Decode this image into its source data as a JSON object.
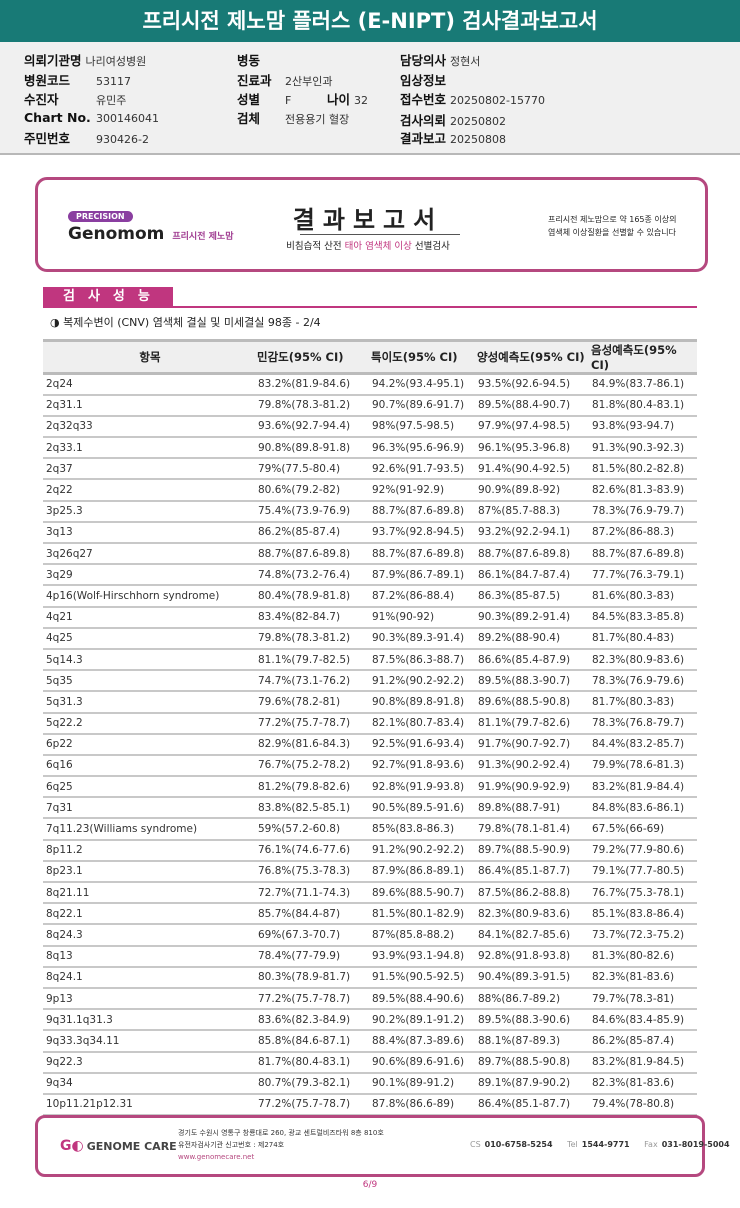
{
  "title": "프리시전 제노맘 플러스 (E-NIPT) 검사결과보고서",
  "patient": {
    "institution": {
      "label": "의뢰기관명",
      "value": "나리여성병원"
    },
    "hospital_code": {
      "label": "병원코드",
      "value": "53117"
    },
    "examinee": {
      "label": "수진자",
      "value": "유민주"
    },
    "chart_no": {
      "label": "Chart No.",
      "value": "300146041"
    },
    "resident_no": {
      "label": "주민번호",
      "value": "930426-2"
    },
    "ward": {
      "label": "병동",
      "value": ""
    },
    "department": {
      "label": "진료과",
      "value": "2산부인과"
    },
    "sex": {
      "label": "성별",
      "value": "F"
    },
    "age": {
      "label": "나이",
      "value": "32"
    },
    "specimen": {
      "label": "검체",
      "value": "전용용기 혈장"
    },
    "doctor": {
      "label": "담당의사",
      "value": "정현서"
    },
    "clinical_info": {
      "label": "임상정보",
      "value": ""
    },
    "receipt_no": {
      "label": "접수번호",
      "value": "20250802-15770"
    },
    "request_date": {
      "label": "검사의뢰",
      "value": "20250802"
    },
    "report_date": {
      "label": "결과보고",
      "value": "20250808"
    }
  },
  "report_header": {
    "badge": "PRECISION",
    "brand": "Genomom",
    "brand_kr": "프리시전 제노맘",
    "title": "결과보고서",
    "subtitle_pre": "비침습적 산전 ",
    "subtitle_hl": "태아 염색체 이상",
    "subtitle_post": " 선별검사",
    "note_line1": "프리시전 제노맘으로 약 165종 이상의",
    "note_line2": "염색체 이상질환을 선별할 수 있습니다"
  },
  "section": {
    "tab": "검사성능",
    "subtitle": "◑ 복제수변이 (CNV) 염색체 결실 및 미세결실 98종 - 2/4"
  },
  "table": {
    "headers": [
      "항목",
      "민감도(95% CI)",
      "특이도(95% CI)",
      "양성예측도(95% CI)",
      "음성예측도(95% CI)"
    ],
    "rows": [
      [
        "2q24",
        "83.2%(81.9-84.6)",
        "94.2%(93.4-95.1)",
        "93.5%(92.6-94.5)",
        "84.9%(83.7-86.1)"
      ],
      [
        "2q31.1",
        "79.8%(78.3-81.2)",
        "90.7%(89.6-91.7)",
        "89.5%(88.4-90.7)",
        "81.8%(80.4-83.1)"
      ],
      [
        "2q32q33",
        "93.6%(92.7-94.4)",
        "98%(97.5-98.5)",
        "97.9%(97.4-98.5)",
        "93.8%(93-94.7)"
      ],
      [
        "2q33.1",
        "90.8%(89.8-91.8)",
        "96.3%(95.6-96.9)",
        "96.1%(95.3-96.8)",
        "91.3%(90.3-92.3)"
      ],
      [
        "2q37",
        "79%(77.5-80.4)",
        "92.6%(91.7-93.5)",
        "91.4%(90.4-92.5)",
        "81.5%(80.2-82.8)"
      ],
      [
        "2q22",
        "80.6%(79.2-82)",
        "92%(91-92.9)",
        "90.9%(89.8-92)",
        "82.6%(81.3-83.9)"
      ],
      [
        "3p25.3",
        "75.4%(73.9-76.9)",
        "88.7%(87.6-89.8)",
        "87%(85.7-88.3)",
        "78.3%(76.9-79.7)"
      ],
      [
        "3q13",
        "86.2%(85-87.4)",
        "93.7%(92.8-94.5)",
        "93.2%(92.2-94.1)",
        "87.2%(86-88.3)"
      ],
      [
        "3q26q27",
        "88.7%(87.6-89.8)",
        "88.7%(87.6-89.8)",
        "88.7%(87.6-89.8)",
        "88.7%(87.6-89.8)"
      ],
      [
        "3q29",
        "74.8%(73.2-76.4)",
        "87.9%(86.7-89.1)",
        "86.1%(84.7-87.4)",
        "77.7%(76.3-79.1)"
      ],
      [
        "4p16(Wolf-Hirschhorn syndrome)",
        "80.4%(78.9-81.8)",
        "87.2%(86-88.4)",
        "86.3%(85-87.5)",
        "81.6%(80.3-83)"
      ],
      [
        "4q21",
        "83.4%(82-84.7)",
        "91%(90-92)",
        "90.3%(89.2-91.4)",
        "84.5%(83.3-85.8)"
      ],
      [
        "4q25",
        "79.8%(78.3-81.2)",
        "90.3%(89.3-91.4)",
        "89.2%(88-90.4)",
        "81.7%(80.4-83)"
      ],
      [
        "5q14.3",
        "81.1%(79.7-82.5)",
        "87.5%(86.3-88.7)",
        "86.6%(85.4-87.9)",
        "82.3%(80.9-83.6)"
      ],
      [
        "5q35",
        "74.7%(73.1-76.2)",
        "91.2%(90.2-92.2)",
        "89.5%(88.3-90.7)",
        "78.3%(76.9-79.6)"
      ],
      [
        "5q31.3",
        "79.6%(78.2-81)",
        "90.8%(89.8-91.8)",
        "89.6%(88.5-90.8)",
        "81.7%(80.3-83)"
      ],
      [
        "5q22.2",
        "77.2%(75.7-78.7)",
        "82.1%(80.7-83.4)",
        "81.1%(79.7-82.6)",
        "78.3%(76.8-79.7)"
      ],
      [
        "6p22",
        "82.9%(81.6-84.3)",
        "92.5%(91.6-93.4)",
        "91.7%(90.7-92.7)",
        "84.4%(83.2-85.7)"
      ],
      [
        "6q16",
        "76.7%(75.2-78.2)",
        "92.7%(91.8-93.6)",
        "91.3%(90.2-92.4)",
        "79.9%(78.6-81.3)"
      ],
      [
        "6q25",
        "81.2%(79.8-82.6)",
        "92.8%(91.9-93.8)",
        "91.9%(90.9-92.9)",
        "83.2%(81.9-84.4)"
      ],
      [
        "7q31",
        "83.8%(82.5-85.1)",
        "90.5%(89.5-91.6)",
        "89.8%(88.7-91)",
        "84.8%(83.6-86.1)"
      ],
      [
        "7q11.23(Williams syndrome)",
        "59%(57.2-60.8)",
        "85%(83.8-86.3)",
        "79.8%(78.1-81.4)",
        "67.5%(66-69)"
      ],
      [
        "8p11.2",
        "76.1%(74.6-77.6)",
        "91.2%(90.2-92.2)",
        "89.7%(88.5-90.9)",
        "79.2%(77.9-80.6)"
      ],
      [
        "8p23.1",
        "76.8%(75.3-78.3)",
        "87.9%(86.8-89.1)",
        "86.4%(85.1-87.7)",
        "79.1%(77.7-80.5)"
      ],
      [
        "8q21.11",
        "72.7%(71.1-74.3)",
        "89.6%(88.5-90.7)",
        "87.5%(86.2-88.8)",
        "76.7%(75.3-78.1)"
      ],
      [
        "8q22.1",
        "85.7%(84.4-87)",
        "81.5%(80.1-82.9)",
        "82.3%(80.9-83.6)",
        "85.1%(83.8-86.4)"
      ],
      [
        "8q24.3",
        "69%(67.3-70.7)",
        "87%(85.8-88.2)",
        "84.1%(82.7-85.6)",
        "73.7%(72.3-75.2)"
      ],
      [
        "8q13",
        "78.4%(77-79.9)",
        "93.9%(93.1-94.8)",
        "92.8%(91.8-93.8)",
        "81.3%(80-82.6)"
      ],
      [
        "8q24.1",
        "80.3%(78.9-81.7)",
        "91.5%(90.5-92.5)",
        "90.4%(89.3-91.5)",
        "82.3%(81-83.6)"
      ],
      [
        "9p13",
        "77.2%(75.7-78.7)",
        "89.5%(88.4-90.6)",
        "88%(86.7-89.2)",
        "79.7%(78.3-81)"
      ],
      [
        "9q31.1q31.3",
        "83.6%(82.3-84.9)",
        "90.2%(89.1-91.2)",
        "89.5%(88.3-90.6)",
        "84.6%(83.4-85.9)"
      ],
      [
        "9q33.3q34.11",
        "85.8%(84.6-87.1)",
        "88.4%(87.3-89.6)",
        "88.1%(87-89.3)",
        "86.2%(85-87.4)"
      ],
      [
        "9q22.3",
        "81.7%(80.4-83.1)",
        "90.6%(89.6-91.6)",
        "89.7%(88.5-90.8)",
        "83.2%(81.9-84.5)"
      ],
      [
        "9q34",
        "80.7%(79.3-82.1)",
        "90.1%(89-91.2)",
        "89.1%(87.9-90.2)",
        "82.3%(81-83.6)"
      ],
      [
        "10p11.21p12.31",
        "77.2%(75.7-78.7)",
        "87.8%(86.6-89)",
        "86.4%(85.1-87.7)",
        "79.4%(78-80.8)"
      ]
    ]
  },
  "footer": {
    "logo": "GENOME CARE",
    "address": "경기도 수원시 영통구 창룡대로 260, 광교 센트럴비즈타워 8층 810호",
    "registration": "유전자검사기관 신고번호 : 제274호",
    "website": "www.genomecare.net",
    "cs_label": "CS",
    "cs": "010-6758-5254",
    "tel_label": "Tel",
    "tel": "1544-9771",
    "fax_label": "Fax",
    "fax": "031-8019-5004"
  },
  "page": "6/9",
  "colors": {
    "title_bar": "#187a76",
    "accent": "#c0367f",
    "border": "#b5487f"
  }
}
